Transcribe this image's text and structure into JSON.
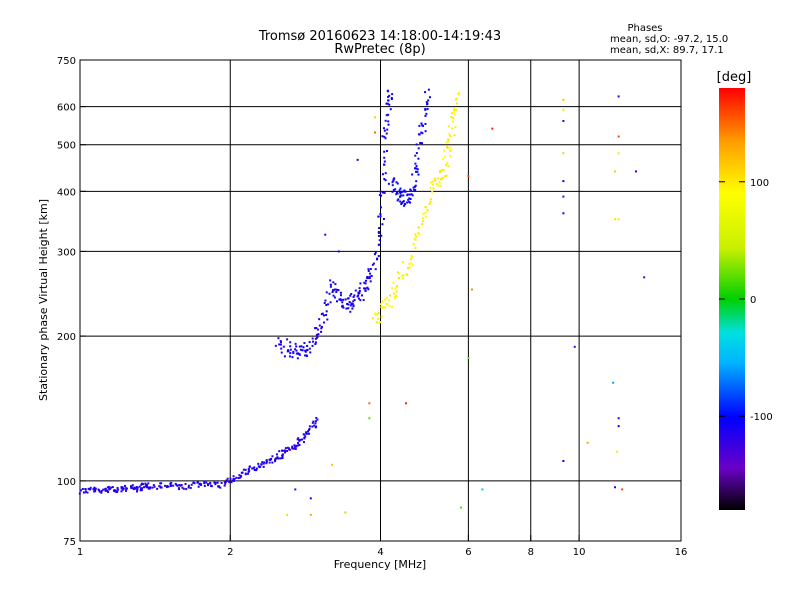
{
  "header": {
    "title_line1": "Tromsø 20160623 14:18:00-14:19:43",
    "title_line2": "RwPretec (8p)",
    "phases_label": "Phases",
    "phases_o": "mean, sd,O: -97.2, 15.0",
    "phases_x": "mean, sd,X:  89.7, 17.1"
  },
  "chart_data": {
    "type": "scatter",
    "xlabel": "Frequency [MHz]",
    "ylabel": "Stationary phase Virtual Height [km]",
    "x_scale": "log",
    "y_scale": "log",
    "xlim": [
      1,
      16
    ],
    "ylim": [
      75,
      750
    ],
    "x_ticks": [
      1,
      2,
      4,
      6,
      8,
      10,
      16
    ],
    "y_ticks": [
      75,
      100,
      200,
      300,
      400,
      500,
      600,
      750
    ],
    "grid_x": [
      2,
      4,
      6,
      8,
      10
    ],
    "grid_y": [
      100,
      200,
      300,
      400,
      500,
      600
    ],
    "grid": true,
    "colorbar": {
      "label": "[deg]",
      "range": [
        -180,
        180
      ],
      "ticks": [
        100,
        0,
        -100
      ],
      "tick_labels": [
        "100",
        "0",
        "-100"
      ],
      "colors": [
        "#000000",
        "#6a00c8",
        "#0000ff",
        "#00b4ff",
        "#00e0e0",
        "#00d000",
        "#c8f000",
        "#ffff00",
        "#ffa000",
        "#ff0000"
      ]
    },
    "series": [
      {
        "points": [
          [
            1.0,
            95
          ],
          [
            1.05,
            96
          ],
          [
            1.1,
            95
          ],
          [
            1.15,
            97
          ],
          [
            1.2,
            95
          ],
          [
            1.25,
            97
          ],
          [
            1.3,
            96
          ],
          [
            1.35,
            98
          ],
          [
            1.4,
            97
          ],
          [
            1.5,
            98
          ],
          [
            1.6,
            97
          ],
          [
            1.7,
            98
          ],
          [
            1.8,
            99
          ],
          [
            1.9,
            98
          ],
          [
            2.0,
            100
          ],
          [
            2.1,
            103
          ],
          [
            2.2,
            106
          ],
          [
            2.3,
            108
          ],
          [
            2.4,
            110
          ],
          [
            2.5,
            112
          ],
          [
            2.6,
            116
          ],
          [
            2.7,
            118
          ],
          [
            2.8,
            122
          ],
          [
            2.9,
            128
          ],
          [
            3.0,
            135
          ]
        ],
        "phase": -115
      },
      {
        "points": [
          [
            2.5,
            195
          ],
          [
            2.6,
            188
          ],
          [
            2.7,
            186
          ],
          [
            2.8,
            186
          ],
          [
            2.9,
            190
          ],
          [
            3.0,
            205
          ],
          [
            3.1,
            225
          ],
          [
            3.2,
            260
          ],
          [
            3.3,
            240
          ],
          [
            3.4,
            230
          ],
          [
            3.5,
            235
          ],
          [
            3.6,
            240
          ],
          [
            3.7,
            250
          ],
          [
            3.8,
            265
          ],
          [
            3.9,
            285
          ],
          [
            4.0,
            340
          ],
          [
            4.05,
            420
          ],
          [
            4.1,
            520
          ],
          [
            4.15,
            600
          ],
          [
            4.2,
            640
          ]
        ],
        "phase": -110
      },
      {
        "points": [
          [
            4.2,
            420
          ],
          [
            4.3,
            400
          ],
          [
            4.4,
            390
          ],
          [
            4.5,
            385
          ],
          [
            4.6,
            395
          ],
          [
            4.7,
            430
          ],
          [
            4.8,
            500
          ],
          [
            4.9,
            580
          ],
          [
            5.0,
            640
          ]
        ],
        "phase": -105
      },
      {
        "points": [
          [
            3.9,
            215
          ],
          [
            4.0,
            225
          ],
          [
            4.2,
            240
          ],
          [
            4.4,
            265
          ],
          [
            4.6,
            290
          ],
          [
            4.8,
            330
          ],
          [
            5.0,
            390
          ],
          [
            5.2,
            420
          ],
          [
            5.4,
            450
          ],
          [
            5.5,
            500
          ],
          [
            5.6,
            570
          ],
          [
            5.7,
            640
          ]
        ],
        "phase": 95
      }
    ],
    "scattered_points": [
      {
        "x": 6.0,
        "y": 430,
        "phase": 160
      },
      {
        "x": 6.7,
        "y": 540,
        "phase": 170
      },
      {
        "x": 6.1,
        "y": 250,
        "phase": 140
      },
      {
        "x": 9.3,
        "y": 620,
        "phase": 120
      },
      {
        "x": 9.3,
        "y": 590,
        "phase": 100
      },
      {
        "x": 9.3,
        "y": 560,
        "phase": -120
      },
      {
        "x": 9.3,
        "y": 480,
        "phase": 40
      },
      {
        "x": 9.3,
        "y": 420,
        "phase": -100
      },
      {
        "x": 9.3,
        "y": 390,
        "phase": -130
      },
      {
        "x": 9.3,
        "y": 360,
        "phase": -110
      },
      {
        "x": 12.0,
        "y": 630,
        "phase": -120
      },
      {
        "x": 12.0,
        "y": 520,
        "phase": 160
      },
      {
        "x": 12.0,
        "y": 480,
        "phase": 100
      },
      {
        "x": 11.8,
        "y": 440,
        "phase": 40
      },
      {
        "x": 11.8,
        "y": 350,
        "phase": 60
      },
      {
        "x": 12.0,
        "y": 350,
        "phase": 100
      },
      {
        "x": 13.0,
        "y": 440,
        "phase": -120
      },
      {
        "x": 13.5,
        "y": 265,
        "phase": -130
      },
      {
        "x": 9.8,
        "y": 190,
        "phase": -130
      },
      {
        "x": 6.0,
        "y": 180,
        "phase": 20
      },
      {
        "x": 11.7,
        "y": 160,
        "phase": -60
      },
      {
        "x": 12.0,
        "y": 135,
        "phase": -120
      },
      {
        "x": 12.0,
        "y": 130,
        "phase": -110
      },
      {
        "x": 11.9,
        "y": 115,
        "phase": 100
      },
      {
        "x": 10.4,
        "y": 120,
        "phase": 130
      },
      {
        "x": 9.3,
        "y": 110,
        "phase": -100
      },
      {
        "x": 11.8,
        "y": 97,
        "phase": -120
      },
      {
        "x": 12.2,
        "y": 96,
        "phase": 160
      },
      {
        "x": 6.4,
        "y": 96,
        "phase": -40
      },
      {
        "x": 5.8,
        "y": 88,
        "phase": 20
      },
      {
        "x": 3.8,
        "y": 145,
        "phase": 150
      },
      {
        "x": 3.8,
        "y": 135,
        "phase": 20
      },
      {
        "x": 4.5,
        "y": 145,
        "phase": 170
      },
      {
        "x": 3.3,
        "y": 300,
        "phase": -110
      },
      {
        "x": 3.6,
        "y": 465,
        "phase": -110
      },
      {
        "x": 3.9,
        "y": 570,
        "phase": 110
      },
      {
        "x": 3.9,
        "y": 530,
        "phase": 150
      },
      {
        "x": 3.1,
        "y": 325,
        "phase": -120
      },
      {
        "x": 2.6,
        "y": 85,
        "phase": 50
      },
      {
        "x": 2.9,
        "y": 85,
        "phase": 130
      },
      {
        "x": 3.4,
        "y": 86,
        "phase": 40
      },
      {
        "x": 3.2,
        "y": 108,
        "phase": 120
      },
      {
        "x": 2.7,
        "y": 96,
        "phase": -130
      },
      {
        "x": 2.9,
        "y": 92,
        "phase": -110
      }
    ]
  }
}
